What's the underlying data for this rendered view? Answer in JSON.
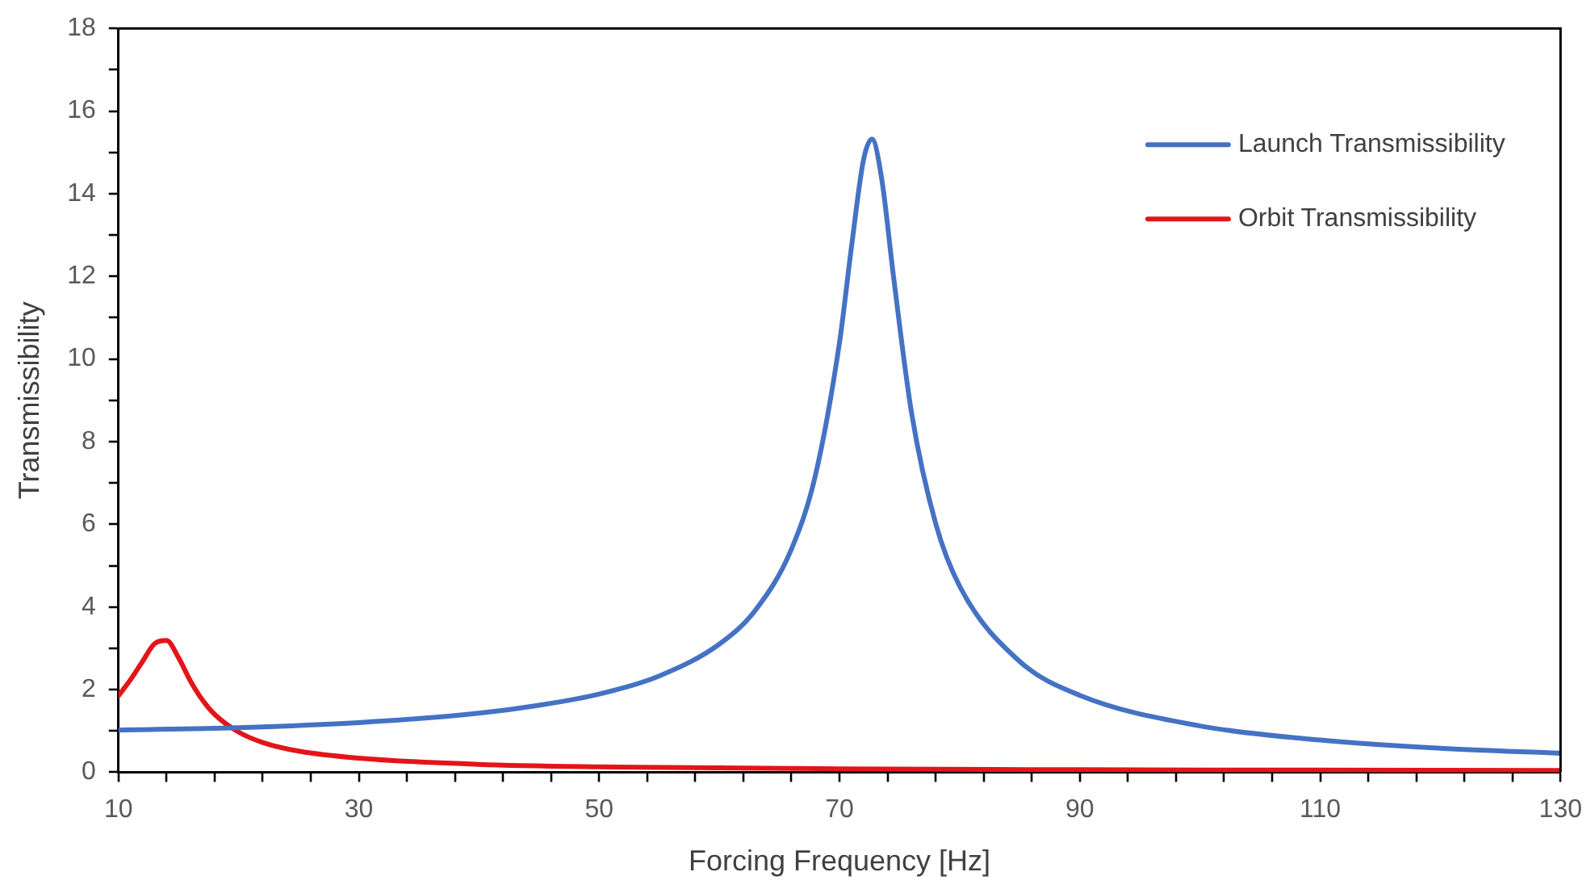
{
  "chart_data": {
    "type": "line",
    "xlabel": "Forcing Frequency [Hz]",
    "ylabel": "Transmissibility",
    "xlim": [
      10,
      130
    ],
    "ylim": [
      0,
      18
    ],
    "xticks": [
      10,
      {
        "value": 14,
        "label": null
      },
      {
        "value": 18,
        "label": null
      },
      {
        "value": 22,
        "label": null
      },
      {
        "value": 26,
        "label": null
      },
      30,
      {
        "value": 34,
        "label": null
      },
      {
        "value": 38,
        "label": null
      },
      {
        "value": 42,
        "label": null
      },
      {
        "value": 46,
        "label": null
      },
      50,
      {
        "value": 54,
        "label": null
      },
      {
        "value": 58,
        "label": null
      },
      {
        "value": 62,
        "label": null
      },
      {
        "value": 66,
        "label": null
      },
      70,
      {
        "value": 74,
        "label": null
      },
      {
        "value": 78,
        "label": null
      },
      {
        "value": 82,
        "label": null
      },
      {
        "value": 86,
        "label": null
      },
      90,
      {
        "value": 94,
        "label": null
      },
      {
        "value": 98,
        "label": null
      },
      {
        "value": 102,
        "label": null
      },
      {
        "value": 106,
        "label": null
      },
      110,
      {
        "value": 114,
        "label": null
      },
      {
        "value": 118,
        "label": null
      },
      {
        "value": 122,
        "label": null
      },
      {
        "value": 126,
        "label": null
      },
      130
    ],
    "yticks": [
      0,
      {
        "value": 1,
        "label": null
      },
      2,
      {
        "value": 3,
        "label": null
      },
      4,
      {
        "value": 5,
        "label": null
      },
      6,
      {
        "value": 7,
        "label": null
      },
      8,
      {
        "value": 9,
        "label": null
      },
      10,
      {
        "value": 11,
        "label": null
      },
      12,
      {
        "value": 13,
        "label": null
      },
      14,
      {
        "value": 15,
        "label": null
      },
      16,
      {
        "value": 17,
        "label": null
      },
      18
    ],
    "grid": false,
    "legend": "top right",
    "marker": "none",
    "line_style": "solid",
    "series": [
      {
        "name": "Launch Transmissibility",
        "color": "#4472c4",
        "x": [
          10,
          20,
          30,
          40,
          45,
          50,
          55,
          60,
          63,
          66,
          68,
          70,
          71,
          72,
          72.7,
          73.5,
          74.5,
          76,
          78,
          80,
          85,
          90,
          100,
          110,
          120,
          130
        ],
        "values": [
          1.02,
          1.08,
          1.2,
          1.43,
          1.62,
          1.89,
          2.33,
          3.1,
          3.92,
          5.4,
          7.19,
          10.4,
          12.72,
          14.82,
          15.32,
          14.38,
          11.98,
          8.69,
          6.02,
          4.5,
          2.68,
          1.86,
          1.12,
          0.78,
          0.58,
          0.46
        ]
      },
      {
        "name": "Orbit Transmissibility",
        "color": "#e3151a",
        "x": [
          10,
          11,
          12,
          13,
          14,
          15,
          16,
          17,
          18,
          20,
          22,
          25,
          30,
          40,
          50,
          70,
          90,
          110,
          130
        ],
        "values": [
          1.85,
          2.24,
          2.68,
          3.11,
          3.19,
          2.77,
          2.2,
          1.74,
          1.4,
          0.97,
          0.72,
          0.51,
          0.34,
          0.19,
          0.13,
          0.08,
          0.06,
          0.05,
          0.04
        ]
      }
    ]
  }
}
